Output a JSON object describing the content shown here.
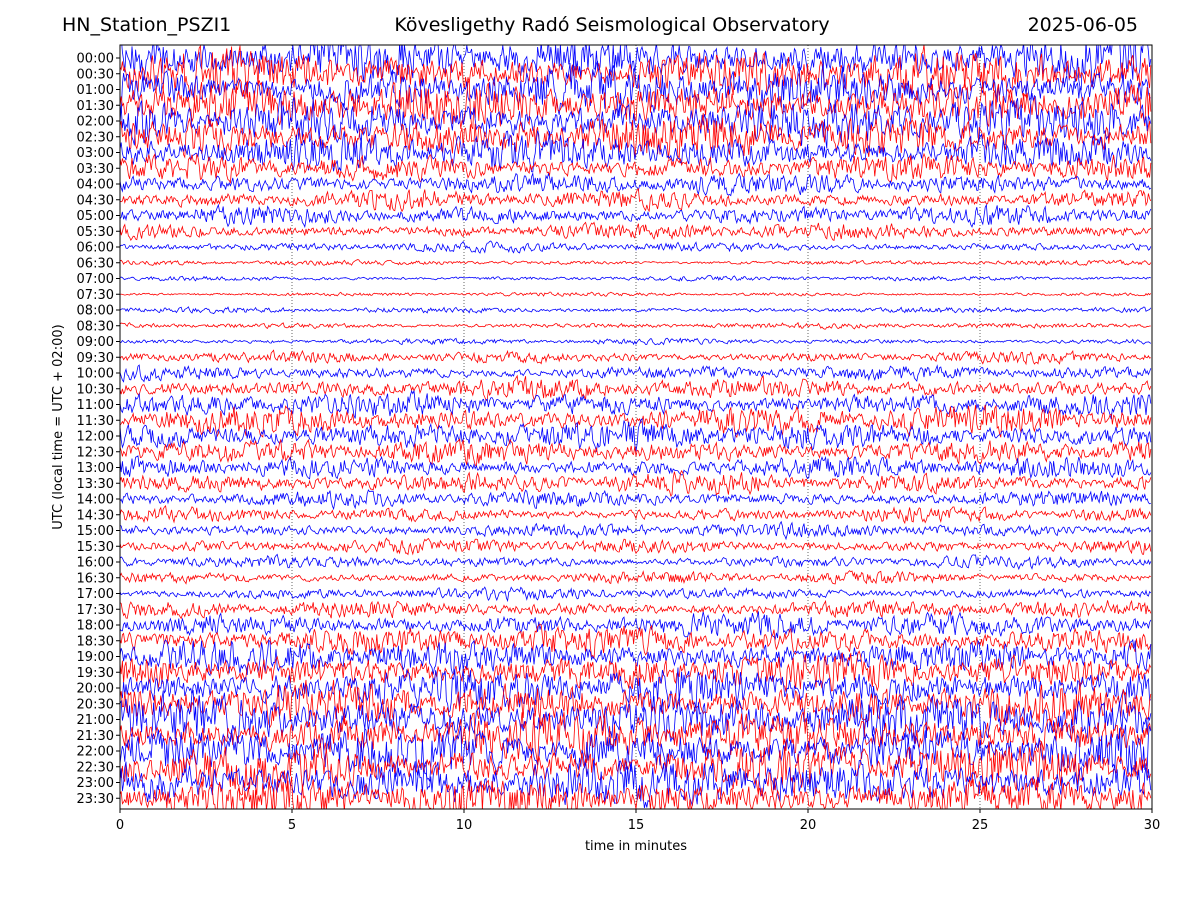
{
  "header": {
    "station": "HN_Station_PSZI1",
    "title": "Kövesligethy Radó Seismological Observatory",
    "date": "2025-06-05"
  },
  "chart_data": {
    "type": "line",
    "title": "Kövesligethy Radó Seismological Observatory",
    "xlabel": "time in minutes",
    "ylabel": "UTC (local time = UTC + 02:00)",
    "xlim": [
      0,
      30
    ],
    "x_ticks": [
      0,
      5,
      10,
      15,
      20,
      25,
      30
    ],
    "y_tick_labels": [
      "00:00",
      "00:30",
      "01:00",
      "01:30",
      "02:00",
      "02:30",
      "03:00",
      "03:30",
      "04:00",
      "04:30",
      "05:00",
      "05:30",
      "06:00",
      "06:30",
      "07:00",
      "07:30",
      "08:00",
      "08:30",
      "09:00",
      "09:30",
      "10:00",
      "10:30",
      "11:00",
      "11:30",
      "12:00",
      "12:30",
      "13:00",
      "13:30",
      "14:00",
      "14:30",
      "15:00",
      "15:30",
      "16:00",
      "16:30",
      "17:00",
      "17:30",
      "18:00",
      "18:30",
      "19:00",
      "19:30",
      "20:00",
      "20:30",
      "21:00",
      "21:30",
      "22:00",
      "22:30",
      "23:00",
      "23:30"
    ],
    "trace_colors": [
      "#0000ff",
      "#ff0000"
    ],
    "trace_amplitude": [
      1.0,
      1.0,
      1.0,
      1.0,
      1.0,
      0.95,
      0.8,
      0.55,
      0.45,
      0.4,
      0.4,
      0.33,
      0.2,
      0.1,
      0.1,
      0.08,
      0.12,
      0.12,
      0.12,
      0.25,
      0.3,
      0.45,
      0.5,
      0.6,
      0.6,
      0.5,
      0.45,
      0.45,
      0.35,
      0.3,
      0.3,
      0.3,
      0.25,
      0.25,
      0.25,
      0.35,
      0.5,
      0.6,
      0.7,
      0.75,
      0.9,
      0.9,
      1.0,
      1.0,
      1.0,
      1.0,
      1.0,
      0.9
    ],
    "grid": "vertical dotted lines at 5-minute intervals"
  }
}
